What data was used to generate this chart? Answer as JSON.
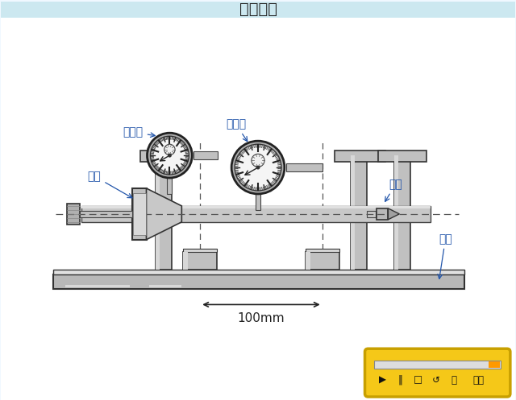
{
  "title": "气门检测",
  "bg_top": "#cce8f0",
  "bg_main": "#f0f8ff",
  "label_bfb_left": "百分表",
  "label_bfb_right": "百分表",
  "label_qimen": "气门",
  "label_dingjian": "顶尖",
  "label_pingban": "平板",
  "label_100mm": "100mm",
  "label_color": "#2255aa",
  "toolbar_bg": "#f5c818",
  "toolbar_border": "#c8a000",
  "gray_dark": "#555555",
  "gray_mid": "#999999",
  "gray_light": "#cccccc",
  "gray_lighter": "#e0e0e0",
  "gray_darkest": "#333333"
}
